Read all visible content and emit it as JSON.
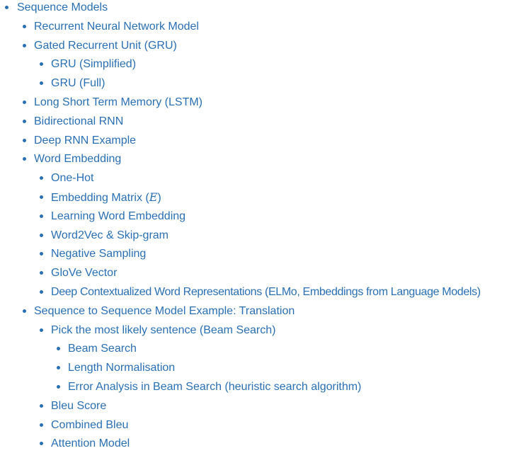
{
  "toc": {
    "items": [
      {
        "label": "Sequence Models",
        "level": 0
      },
      {
        "label": "Recurrent Neural Network Model",
        "level": 1
      },
      {
        "label": "Gated Recurrent Unit (GRU)",
        "level": 1
      },
      {
        "label": "GRU (Simplified)",
        "level": 2
      },
      {
        "label": "GRU (Full)",
        "level": 2
      },
      {
        "label": "Long Short Term Memory (LSTM)",
        "level": 1
      },
      {
        "label": "Bidirectional RNN",
        "level": 1
      },
      {
        "label": "Deep RNN Example",
        "level": 1
      },
      {
        "label": "Word Embedding",
        "level": 1
      },
      {
        "label": "One-Hot",
        "level": 2
      },
      {
        "label": "Embedding Matrix (",
        "label_math": "E",
        "label_end": ")",
        "level": 2
      },
      {
        "label": "Learning Word Embedding",
        "level": 2
      },
      {
        "label": "Word2Vec & Skip-gram",
        "level": 2
      },
      {
        "label": "Negative Sampling",
        "level": 2
      },
      {
        "label": "GloVe Vector",
        "level": 2
      },
      {
        "label": "Deep Contextualized Word Representations (ELMo, Embeddings from Language Models)",
        "level": 2
      },
      {
        "label": "Sequence to Sequence Model Example: Translation",
        "level": 1
      },
      {
        "label": "Pick the most likely sentence (Beam Search)",
        "level": 2
      },
      {
        "label": "Beam Search",
        "level": 3
      },
      {
        "label": "Length Normalisation",
        "level": 3
      },
      {
        "label": "Error Analysis in Beam Search (heuristic search algorithm)",
        "level": 3
      },
      {
        "label": "Bleu Score",
        "level": 2
      },
      {
        "label": "Combined Bleu",
        "level": 2
      },
      {
        "label": "Attention Model",
        "level": 2
      }
    ]
  }
}
